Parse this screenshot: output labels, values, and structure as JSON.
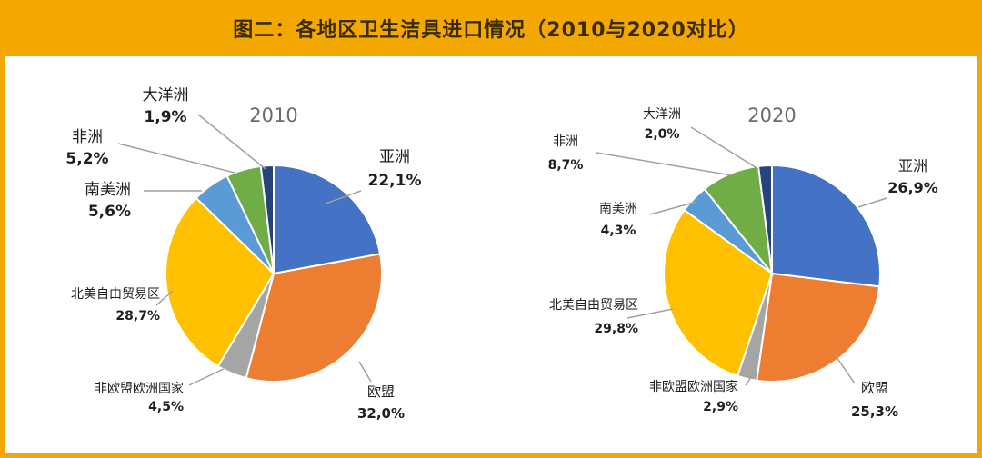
{
  "title": "图二：各地区卫生洁具进口情况（2010与2020对比）",
  "colors": {
    "frame": "#f2a800",
    "亚洲": "#4472c4",
    "欧盟": "#ed7d31",
    "非欧盟欧洲国家": "#a5a5a5",
    "北美自由贸易区": "#ffc000",
    "南美洲": "#5b9bd5",
    "非洲": "#70ad47",
    "大洋洲": "#264478"
  },
  "chart_data": [
    {
      "type": "pie",
      "title": "2010",
      "slices": [
        {
          "label": "亚洲",
          "value": 22.1,
          "display": "22,1%"
        },
        {
          "label": "欧盟",
          "value": 32.0,
          "display": "32,0%"
        },
        {
          "label": "非欧盟欧洲国家",
          "value": 4.5,
          "display": "4,5%"
        },
        {
          "label": "北美自由贸易区",
          "value": 28.7,
          "display": "28,7%"
        },
        {
          "label": "南美洲",
          "value": 5.6,
          "display": "5,6%"
        },
        {
          "label": "非洲",
          "value": 5.2,
          "display": "5,2%"
        },
        {
          "label": "大洋洲",
          "value": 1.9,
          "display": "1,9%"
        }
      ]
    },
    {
      "type": "pie",
      "title": "2020",
      "slices": [
        {
          "label": "亚洲",
          "value": 26.9,
          "display": "26,9%"
        },
        {
          "label": "欧盟",
          "value": 25.3,
          "display": "25,3%"
        },
        {
          "label": "非欧盟欧洲国家",
          "value": 2.9,
          "display": "2,9%"
        },
        {
          "label": "北美自由贸易区",
          "value": 29.8,
          "display": "29,8%"
        },
        {
          "label": "南美洲",
          "value": 4.3,
          "display": "4,3%"
        },
        {
          "label": "非洲",
          "value": 8.7,
          "display": "8,7%"
        },
        {
          "label": "大洋洲",
          "value": 2.0,
          "display": "2,0%"
        }
      ]
    }
  ]
}
